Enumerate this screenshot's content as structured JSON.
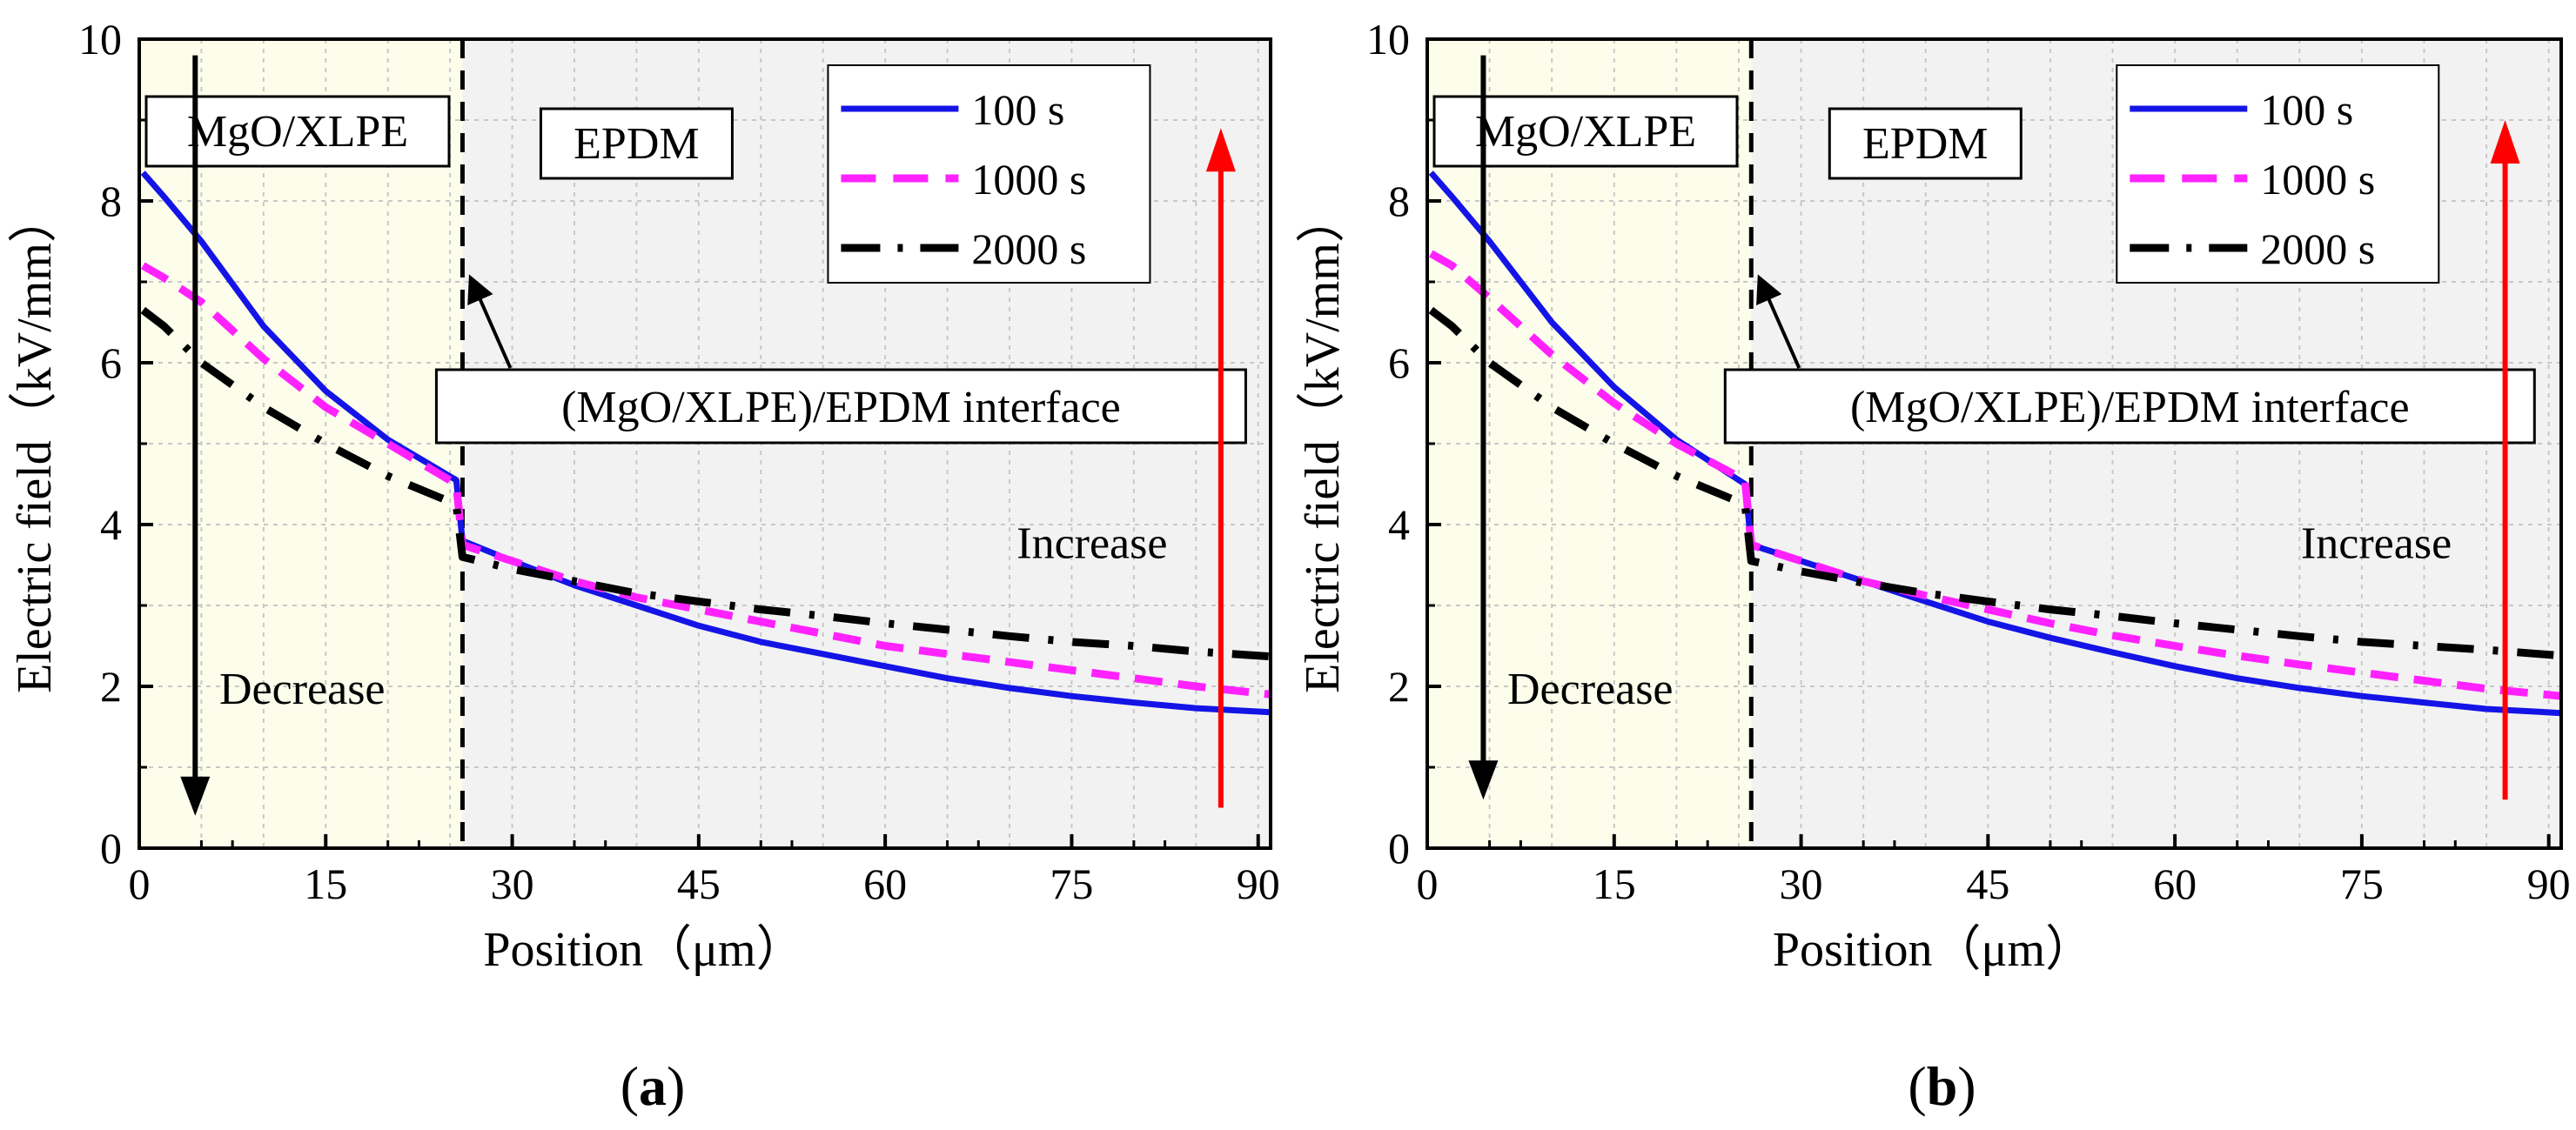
{
  "chart_data": [
    {
      "type": "line",
      "panel_label": "a",
      "caption_open": "(",
      "caption_close": ")",
      "xlabel": "Position（μm）",
      "ylabel": "Electric field（kV/mm）",
      "xlim": [
        0,
        91
      ],
      "ylim": [
        0,
        10
      ],
      "xticks": [
        0,
        15,
        30,
        45,
        60,
        75,
        90
      ],
      "yticks": [
        0,
        2,
        4,
        6,
        8,
        10
      ],
      "grid": true,
      "interface_x": 26,
      "regions": [
        {
          "label": "MgO/XLPE",
          "x": [
            0,
            26
          ],
          "color": "#fdfdec"
        },
        {
          "label": "EPDM",
          "x": [
            26,
            91
          ],
          "color": "#f2f2f2"
        }
      ],
      "annotations": {
        "interface": "(MgO/XLPE)/EPDM interface",
        "decrease": "Decrease",
        "increase": "Increase",
        "decrease_arrow": {
          "x": 4.5,
          "from": 9.8,
          "to": 0.4
        },
        "increase_arrow": {
          "x": 87,
          "from": 0.5,
          "to": 8.9
        },
        "interface_pointer": {
          "from": [
            3.9,
            5.75
          ],
          "to": [
            2.3,
            6.85
          ]
        }
      },
      "legend_position": "top-right",
      "series": [
        {
          "name": "100 s",
          "color": "#1414e6",
          "dash": "solid",
          "points": [
            [
              0.3,
              8.35
            ],
            [
              2,
              8.05
            ],
            [
              5,
              7.5
            ],
            [
              10,
              6.45
            ],
            [
              15,
              5.65
            ],
            [
              20,
              5.05
            ],
            [
              25.5,
              4.55
            ],
            [
              26,
              3.8
            ],
            [
              30,
              3.55
            ],
            [
              35,
              3.25
            ],
            [
              40,
              3.0
            ],
            [
              45,
              2.75
            ],
            [
              50,
              2.55
            ],
            [
              55,
              2.4
            ],
            [
              60,
              2.25
            ],
            [
              65,
              2.1
            ],
            [
              70,
              1.98
            ],
            [
              75,
              1.88
            ],
            [
              80,
              1.8
            ],
            [
              85,
              1.73
            ],
            [
              91,
              1.68
            ]
          ]
        },
        {
          "name": "1000 s",
          "color": "#ff22ff",
          "dash": "dash",
          "points": [
            [
              0.3,
              7.2
            ],
            [
              2,
              7.05
            ],
            [
              5,
              6.75
            ],
            [
              10,
              6.05
            ],
            [
              15,
              5.45
            ],
            [
              20,
              5.0
            ],
            [
              25.5,
              4.5
            ],
            [
              26,
              3.75
            ],
            [
              30,
              3.55
            ],
            [
              35,
              3.3
            ],
            [
              40,
              3.1
            ],
            [
              45,
              2.95
            ],
            [
              50,
              2.8
            ],
            [
              55,
              2.65
            ],
            [
              60,
              2.5
            ],
            [
              65,
              2.4
            ],
            [
              70,
              2.3
            ],
            [
              75,
              2.2
            ],
            [
              80,
              2.1
            ],
            [
              85,
              2.0
            ],
            [
              91,
              1.9
            ]
          ]
        },
        {
          "name": "2000 s",
          "color": "#000000",
          "dash": "dashdot",
          "points": [
            [
              0.3,
              6.65
            ],
            [
              2,
              6.45
            ],
            [
              5,
              6.0
            ],
            [
              10,
              5.45
            ],
            [
              15,
              5.0
            ],
            [
              20,
              4.6
            ],
            [
              25.5,
              4.25
            ],
            [
              26,
              3.6
            ],
            [
              30,
              3.45
            ],
            [
              35,
              3.3
            ],
            [
              40,
              3.15
            ],
            [
              45,
              3.05
            ],
            [
              50,
              2.95
            ],
            [
              55,
              2.87
            ],
            [
              60,
              2.78
            ],
            [
              65,
              2.7
            ],
            [
              70,
              2.62
            ],
            [
              75,
              2.55
            ],
            [
              80,
              2.5
            ],
            [
              85,
              2.43
            ],
            [
              91,
              2.37
            ]
          ]
        }
      ]
    },
    {
      "type": "line",
      "panel_label": "b",
      "caption_open": "(",
      "caption_close": ")",
      "xlabel": "Position（μm）",
      "ylabel": "Electric field（kV/mm）",
      "xlim": [
        0,
        91
      ],
      "ylim": [
        0,
        10
      ],
      "xticks": [
        0,
        15,
        30,
        45,
        60,
        75,
        90
      ],
      "yticks": [
        0,
        2,
        4,
        6,
        8,
        10
      ],
      "grid": true,
      "interface_x": 26,
      "regions": [
        {
          "label": "MgO/XLPE",
          "x": [
            0,
            26
          ],
          "color": "#fdfdec"
        },
        {
          "label": "EPDM",
          "x": [
            26,
            91
          ],
          "color": "#f2f2f2"
        }
      ],
      "annotations": {
        "interface": "(MgO/XLPE)/EPDM interface",
        "decrease": "Decrease",
        "increase": "Increase",
        "decrease_arrow": {
          "x": 4.5,
          "from": 9.8,
          "to": 0.6
        },
        "increase_arrow": {
          "x": 86.5,
          "from": 0.6,
          "to": 9.0
        },
        "interface_pointer": {
          "from": [
            3.9,
            5.75
          ],
          "to": [
            2.3,
            7.0
          ]
        }
      },
      "legend_position": "top-right",
      "series": [
        {
          "name": "100 s",
          "color": "#1414e6",
          "dash": "solid",
          "points": [
            [
              0.3,
              8.35
            ],
            [
              2,
              8.05
            ],
            [
              5,
              7.5
            ],
            [
              10,
              6.5
            ],
            [
              15,
              5.7
            ],
            [
              20,
              5.05
            ],
            [
              25.5,
              4.5
            ],
            [
              26,
              3.75
            ],
            [
              30,
              3.55
            ],
            [
              35,
              3.3
            ],
            [
              40,
              3.05
            ],
            [
              45,
              2.8
            ],
            [
              50,
              2.6
            ],
            [
              55,
              2.42
            ],
            [
              60,
              2.25
            ],
            [
              65,
              2.1
            ],
            [
              70,
              1.98
            ],
            [
              75,
              1.88
            ],
            [
              80,
              1.8
            ],
            [
              85,
              1.72
            ],
            [
              91,
              1.67
            ]
          ]
        },
        {
          "name": "1000 s",
          "color": "#ff22ff",
          "dash": "dash",
          "points": [
            [
              0.3,
              7.35
            ],
            [
              2,
              7.2
            ],
            [
              5,
              6.8
            ],
            [
              10,
              6.1
            ],
            [
              15,
              5.5
            ],
            [
              20,
              5.0
            ],
            [
              25.5,
              4.55
            ],
            [
              26,
              3.75
            ],
            [
              30,
              3.55
            ],
            [
              35,
              3.3
            ],
            [
              40,
              3.12
            ],
            [
              45,
              2.95
            ],
            [
              50,
              2.78
            ],
            [
              55,
              2.63
            ],
            [
              60,
              2.5
            ],
            [
              65,
              2.38
            ],
            [
              70,
              2.27
            ],
            [
              75,
              2.17
            ],
            [
              80,
              2.07
            ],
            [
              85,
              1.97
            ],
            [
              91,
              1.88
            ]
          ]
        },
        {
          "name": "2000 s",
          "color": "#000000",
          "dash": "dashdot",
          "points": [
            [
              0.3,
              6.65
            ],
            [
              2,
              6.45
            ],
            [
              5,
              6.0
            ],
            [
              10,
              5.45
            ],
            [
              15,
              5.0
            ],
            [
              20,
              4.6
            ],
            [
              25.5,
              4.25
            ],
            [
              26,
              3.55
            ],
            [
              30,
              3.42
            ],
            [
              35,
              3.28
            ],
            [
              40,
              3.15
            ],
            [
              45,
              3.05
            ],
            [
              50,
              2.95
            ],
            [
              55,
              2.87
            ],
            [
              60,
              2.78
            ],
            [
              65,
              2.7
            ],
            [
              70,
              2.62
            ],
            [
              75,
              2.55
            ],
            [
              80,
              2.5
            ],
            [
              85,
              2.45
            ],
            [
              91,
              2.38
            ]
          ]
        }
      ]
    }
  ]
}
